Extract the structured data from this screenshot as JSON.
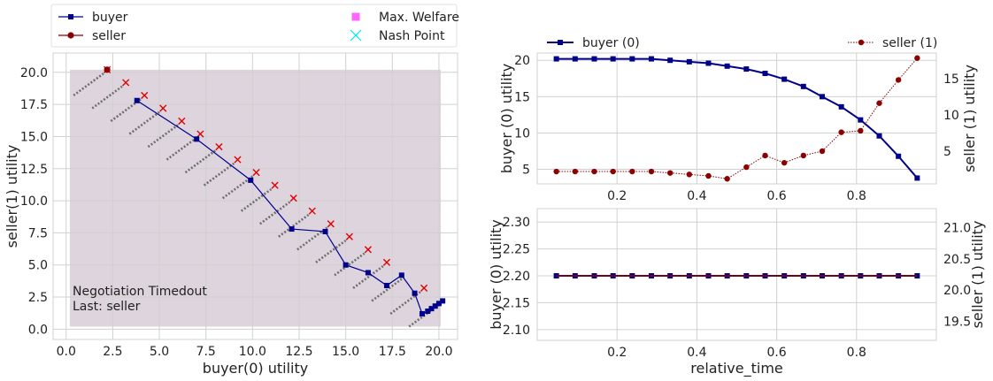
{
  "colors": {
    "buyer": "#00008b",
    "seller": "#8b0000",
    "offer_x": "#e00000",
    "welfare": "#ff66ff",
    "nash": "#00e5ee",
    "region": "#ddd4dd",
    "grid": "#d0d0d0",
    "dots": "#6e6e6e"
  },
  "chart_data": [
    {
      "id": "utility-space",
      "type": "scatter",
      "xlabel": "buyer(0) utility",
      "ylabel": "seller(1) utility",
      "xlim": [
        -0.7,
        21.0
      ],
      "ylim": [
        -0.8,
        21.5
      ],
      "xticks": [
        0.0,
        2.5,
        5.0,
        7.5,
        10.0,
        12.5,
        15.0,
        17.5,
        20.0
      ],
      "xtick_labels": [
        "0.0",
        "2.5",
        "5.0",
        "7.5",
        "10.0",
        "12.5",
        "15.0",
        "17.5",
        "20.0"
      ],
      "yticks": [
        0.0,
        2.5,
        5.0,
        7.5,
        10.0,
        12.5,
        15.0,
        17.5,
        20.0
      ],
      "ytick_labels": [
        "0.0",
        "2.5",
        "5.0",
        "7.5",
        "10.0",
        "12.5",
        "15.0",
        "17.5",
        "20.0"
      ],
      "grid": true,
      "outcome_region": {
        "x": [
          0.2,
          20.1
        ],
        "y": [
          0.2,
          20.2
        ]
      },
      "annotation": [
        "Negotiation Timedout",
        "Last: seller"
      ],
      "legend": {
        "placement": "above",
        "items": [
          {
            "label": "buyer",
            "marker": "square-line"
          },
          {
            "label": "seller",
            "marker": "circle-line"
          },
          {
            "label": "Max. Welfare",
            "marker": "square"
          },
          {
            "label": "Nash Point",
            "marker": "x"
          }
        ]
      },
      "outcome_lines": [
        {
          "x": [
            0.4,
            2.0
          ],
          "y": [
            18.2,
            19.9
          ]
        },
        {
          "x": [
            1.4,
            3.0
          ],
          "y": [
            17.2,
            18.9
          ]
        },
        {
          "x": [
            2.4,
            4.0
          ],
          "y": [
            16.2,
            17.9
          ]
        },
        {
          "x": [
            3.4,
            5.0
          ],
          "y": [
            15.2,
            16.9
          ]
        },
        {
          "x": [
            4.4,
            6.0
          ],
          "y": [
            14.2,
            15.9
          ]
        },
        {
          "x": [
            5.4,
            7.0
          ],
          "y": [
            13.2,
            14.9
          ]
        },
        {
          "x": [
            6.4,
            8.0
          ],
          "y": [
            12.2,
            13.9
          ]
        },
        {
          "x": [
            7.4,
            9.0
          ],
          "y": [
            11.2,
            12.9
          ]
        },
        {
          "x": [
            8.4,
            10.0
          ],
          "y": [
            10.2,
            11.9
          ]
        },
        {
          "x": [
            9.4,
            11.0
          ],
          "y": [
            9.2,
            10.9
          ]
        },
        {
          "x": [
            10.4,
            12.0
          ],
          "y": [
            8.2,
            9.9
          ]
        },
        {
          "x": [
            11.4,
            13.0
          ],
          "y": [
            7.2,
            8.9
          ]
        },
        {
          "x": [
            12.4,
            14.0
          ],
          "y": [
            6.2,
            7.9
          ]
        },
        {
          "x": [
            13.4,
            15.0
          ],
          "y": [
            5.2,
            6.9
          ]
        },
        {
          "x": [
            14.4,
            16.0
          ],
          "y": [
            4.2,
            5.9
          ]
        },
        {
          "x": [
            15.4,
            17.0
          ],
          "y": [
            3.2,
            4.9
          ]
        },
        {
          "x": [
            16.4,
            18.0
          ],
          "y": [
            2.2,
            3.9
          ]
        },
        {
          "x": [
            17.4,
            19.0
          ],
          "y": [
            1.2,
            2.9
          ]
        },
        {
          "x": [
            18.4,
            20.0
          ],
          "y": [
            0.2,
            1.9
          ]
        }
      ],
      "offer_marks": {
        "x": [
          2.2,
          3.2,
          4.2,
          5.2,
          6.2,
          7.2,
          8.2,
          9.2,
          10.2,
          11.2,
          12.2,
          13.2,
          14.2,
          15.2,
          16.2,
          17.2,
          19.2
        ],
        "y": [
          20.2,
          19.2,
          18.2,
          17.2,
          16.2,
          15.2,
          14.2,
          13.2,
          12.2,
          11.2,
          10.2,
          9.2,
          8.2,
          7.2,
          6.2,
          5.2,
          3.2
        ]
      },
      "series": [
        {
          "name": "buyer",
          "x": [
            3.8,
            7.0,
            9.9,
            12.1,
            13.9,
            15.0,
            16.2,
            17.2,
            18.0,
            18.7,
            19.1,
            19.4,
            19.6,
            19.8,
            20.0,
            20.2
          ],
          "y": [
            17.8,
            14.8,
            11.6,
            7.8,
            7.6,
            5.0,
            4.4,
            3.4,
            4.2,
            2.8,
            1.2,
            1.4,
            1.6,
            1.8,
            2.0,
            2.2
          ]
        },
        {
          "name": "seller",
          "x": [
            2.2
          ],
          "y": [
            20.2
          ]
        }
      ]
    },
    {
      "id": "utility-vs-time",
      "type": "line",
      "ylabel_left": "buyer (0) utility",
      "ylabel_right": "seller (1) utility",
      "xlim": [
        0.0,
        1.0
      ],
      "ylim_left": [
        3.0,
        21.0
      ],
      "ylim_right": [
        0.5,
        18.5
      ],
      "xticks": [
        0.2,
        0.4,
        0.6,
        0.8
      ],
      "xtick_labels": [
        "0.2",
        "0.4",
        "0.6",
        "0.8"
      ],
      "yticks_left": [
        5,
        10,
        15,
        20
      ],
      "yticks_right": [
        5,
        10,
        15
      ],
      "grid": true,
      "legend": [
        {
          "label": "buyer (0)",
          "placement": "upper-left"
        },
        {
          "label": "seller (1)",
          "placement": "upper-right"
        }
      ],
      "x": [
        0.048,
        0.095,
        0.143,
        0.19,
        0.238,
        0.286,
        0.333,
        0.381,
        0.429,
        0.476,
        0.524,
        0.571,
        0.619,
        0.667,
        0.714,
        0.762,
        0.81,
        0.857,
        0.905,
        0.952
      ],
      "series": [
        {
          "name": "buyer (0)",
          "axis": "left",
          "values": [
            20.2,
            20.2,
            20.2,
            20.2,
            20.2,
            20.2,
            20.0,
            19.8,
            19.6,
            19.2,
            18.8,
            18.2,
            17.4,
            16.4,
            15.0,
            13.6,
            11.8,
            9.6,
            6.8,
            3.8
          ]
        },
        {
          "name": "seller (1)",
          "axis": "right",
          "values": [
            2.2,
            2.2,
            2.2,
            2.2,
            2.2,
            2.2,
            2.0,
            1.8,
            1.6,
            1.2,
            2.8,
            4.4,
            3.4,
            4.4,
            5.0,
            7.6,
            7.8,
            11.6,
            14.8,
            17.8
          ]
        }
      ]
    },
    {
      "id": "buyer-seller-flat",
      "type": "line",
      "xlabel": "relative_time",
      "ylabel_left": "buyer (0) utility",
      "ylabel_right": "seller (1) utility",
      "xlim": [
        0.0,
        1.0
      ],
      "ylim_left": [
        2.08,
        2.325
      ],
      "ylim_right": [
        19.2,
        21.3
      ],
      "xticks": [
        0.2,
        0.4,
        0.6,
        0.8
      ],
      "xtick_labels": [
        "0.2",
        "0.4",
        "0.6",
        "0.8"
      ],
      "yticks_left": [
        2.1,
        2.15,
        2.2,
        2.25,
        2.3
      ],
      "ytick_labels_left": [
        "2.10",
        "2.15",
        "2.20",
        "2.25",
        "2.30"
      ],
      "yticks_right": [
        19.5,
        20.0,
        20.5,
        21.0
      ],
      "ytick_labels_right": [
        "19.5",
        "20.0",
        "20.5",
        "21.0"
      ],
      "grid": true,
      "x": [
        0.048,
        0.095,
        0.143,
        0.19,
        0.238,
        0.286,
        0.333,
        0.381,
        0.429,
        0.476,
        0.524,
        0.571,
        0.619,
        0.667,
        0.714,
        0.762,
        0.81,
        0.857,
        0.905,
        0.952
      ],
      "series": [
        {
          "name": "buyer (0)",
          "axis": "left",
          "values": [
            2.2,
            2.2,
            2.2,
            2.2,
            2.2,
            2.2,
            2.2,
            2.2,
            2.2,
            2.2,
            2.2,
            2.2,
            2.2,
            2.2,
            2.2,
            2.2,
            2.2,
            2.2,
            2.2,
            2.2
          ]
        },
        {
          "name": "seller (1)",
          "axis": "left",
          "values": [
            2.2,
            2.2,
            2.2,
            2.2,
            2.2,
            2.2,
            2.2,
            2.2,
            2.2,
            2.2,
            2.2,
            2.2,
            2.2,
            2.2,
            2.2,
            2.2,
            2.2,
            2.2,
            2.2,
            2.2
          ]
        }
      ]
    }
  ]
}
